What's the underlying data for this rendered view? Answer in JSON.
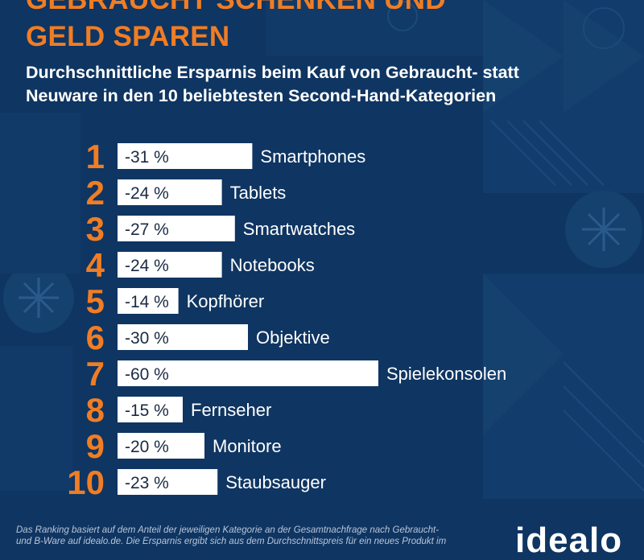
{
  "header": {
    "title_line1": "GEBRAUCHT SCHENKEN UND",
    "title_line2": "GELD SPAREN",
    "subtitle_line1": "Durchschnittliche Ersparnis beim Kauf von Gebraucht- statt",
    "subtitle_line2": "Neuware in den 10 beliebtesten Second-Hand-Kategorien"
  },
  "footnote": {
    "line1": "Das Ranking basiert auf dem Anteil der jeweiligen Kategorie an der Gesamtnachfrage nach Gebraucht-",
    "line2": "und B-Ware auf idealo.de. Die Ersparnis ergibt sich aus dem Durchschnittspreis für ein neues Produkt im"
  },
  "brand": {
    "logo_text": "idealo"
  },
  "colors": {
    "background": "#0f3562",
    "accent": "#f07d24",
    "bar": "#ffffff",
    "text": "#ffffff",
    "pattern": "#1b4a7a"
  },
  "chart_data": {
    "type": "bar",
    "orientation": "horizontal",
    "ranks": [
      "1",
      "2",
      "3",
      "4",
      "5",
      "6",
      "7",
      "8",
      "9",
      "10"
    ],
    "categories": [
      "Smartphones",
      "Tablets",
      "Smartwatches",
      "Notebooks",
      "Kopfhörer",
      "Objektive",
      "Spielekonsolen",
      "Fernseher",
      "Monitore",
      "Staubsauger"
    ],
    "values": [
      -31,
      -24,
      -27,
      -24,
      -14,
      -30,
      -60,
      -15,
      -20,
      -23
    ],
    "value_labels": [
      "-31 %",
      "-24 %",
      "-27 %",
      "-24 %",
      "-14 %",
      "-30 %",
      "-60 %",
      "-15 %",
      "-20 %",
      "-23 %"
    ],
    "unit": "%"
  }
}
